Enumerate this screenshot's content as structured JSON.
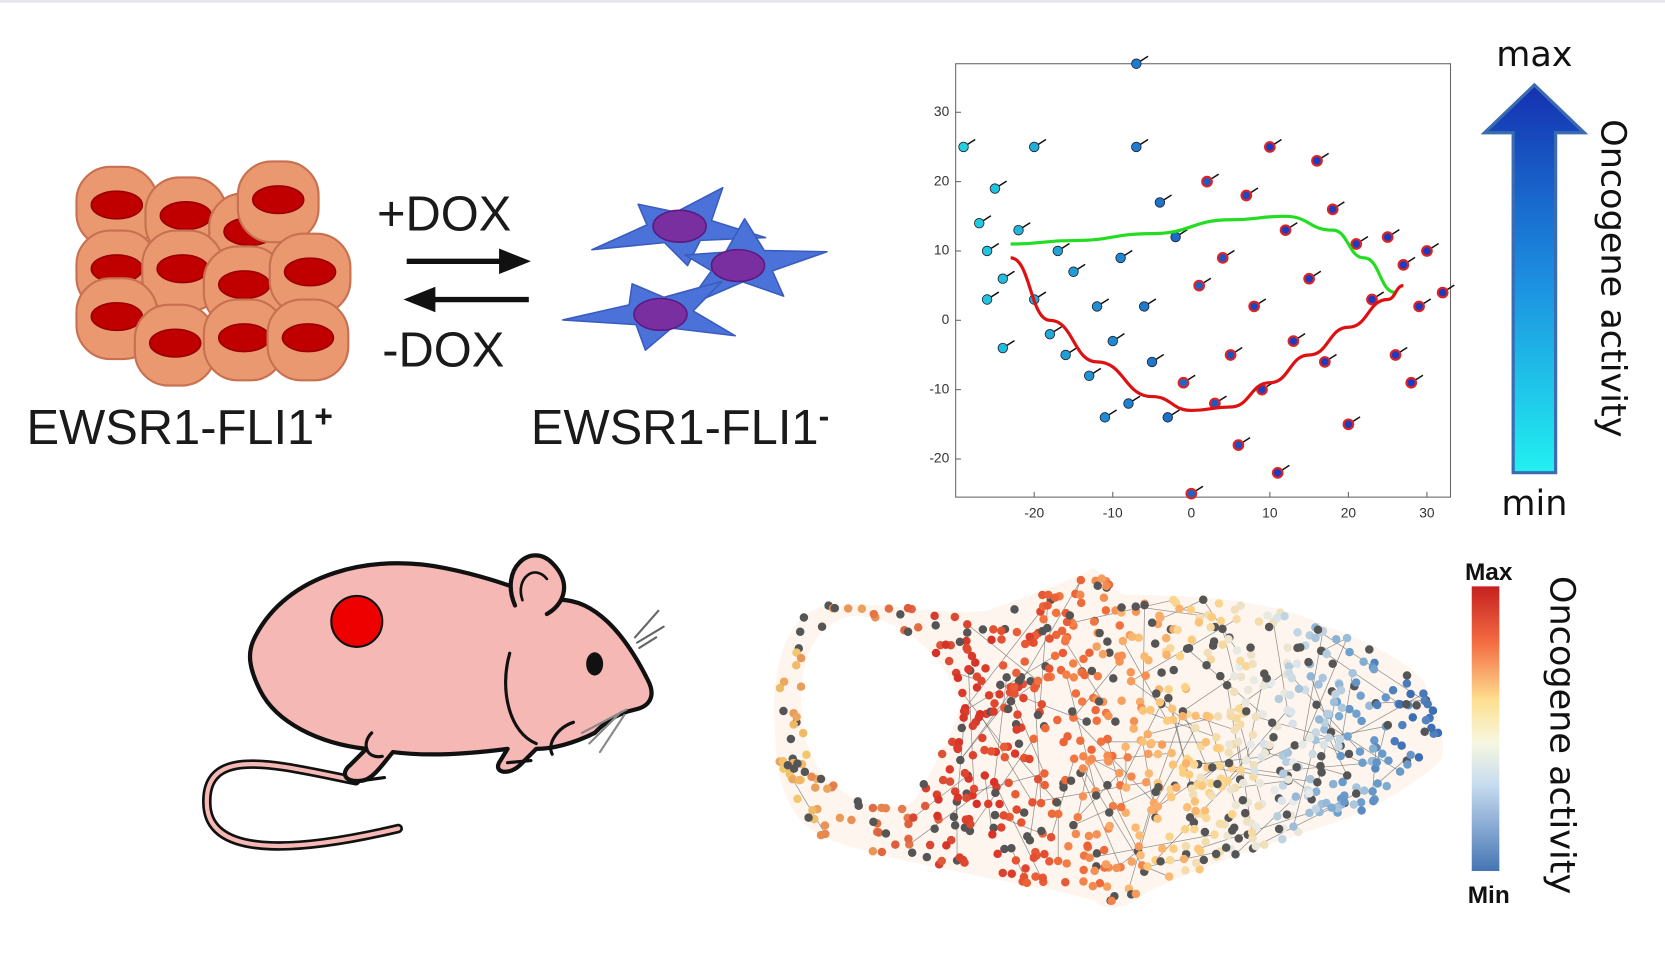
{
  "labels": {
    "plus_dox": "+DOX",
    "minus_dox": "-DOX",
    "positive": "EWSR1-FLI1",
    "positive_sup": "+",
    "negative": "EWSR1-FLI1",
    "negative_sup": "-"
  },
  "chart_data": {
    "type": "scatter",
    "xlim": [
      -30,
      33
    ],
    "ylim": [
      -25.5,
      37
    ],
    "xticks": [
      -20,
      -10,
      0,
      10,
      20,
      30
    ],
    "yticks": [
      -20,
      -10,
      0,
      10,
      20,
      30
    ],
    "color_scale": [
      "#22e6e6",
      "#1a3cc0"
    ],
    "ring_color": "#e02222",
    "x": [
      -29,
      -27,
      -26,
      -26,
      -25,
      -24,
      -24,
      -22,
      -20,
      -20,
      -18,
      -17,
      -16,
      -15,
      -13,
      -12,
      -11,
      -10,
      -9,
      -8,
      -7,
      -7,
      -6,
      -5,
      -4,
      -3,
      -2,
      -1,
      0,
      1,
      2,
      3,
      4,
      5,
      6,
      7,
      8,
      9,
      10,
      11,
      12,
      13,
      15,
      16,
      17,
      18,
      20,
      21,
      23,
      25,
      26,
      27,
      28,
      29,
      30,
      32
    ],
    "values": [
      25,
      14,
      10,
      3,
      19,
      6,
      -4,
      13,
      25,
      3,
      -2,
      10,
      -5,
      7,
      -8,
      2,
      -14,
      -3,
      9,
      -12,
      37,
      25,
      2,
      -6,
      17,
      -14,
      12,
      -9,
      -25,
      5,
      20,
      -12,
      9,
      -5,
      -18,
      18,
      2,
      -10,
      25,
      -22,
      13,
      -3,
      6,
      23,
      -6,
      16,
      -15,
      11,
      3,
      12,
      -5,
      8,
      -9,
      2,
      10,
      4
    ],
    "curves": [
      {
        "color": "#22dd22",
        "x": [
          -23,
          -15,
          -5,
          5,
          12,
          18,
          22,
          26
        ],
        "values": [
          11,
          11.5,
          12.5,
          14.5,
          15,
          13,
          9,
          4
        ]
      },
      {
        "color": "#dd1111",
        "x": [
          -23,
          -18,
          -12,
          -5,
          0,
          5,
          10,
          15,
          20,
          25,
          27
        ],
        "values": [
          9,
          0,
          -6,
          -11,
          -13,
          -12.5,
          -9,
          -5,
          -1,
          3,
          5
        ]
      }
    ]
  },
  "colorbar": {
    "max": "max",
    "min": "min",
    "label": "Oncogene activity"
  },
  "network_colorbar": {
    "max": "Max",
    "min": "Min",
    "label": "Oncogene activity"
  }
}
